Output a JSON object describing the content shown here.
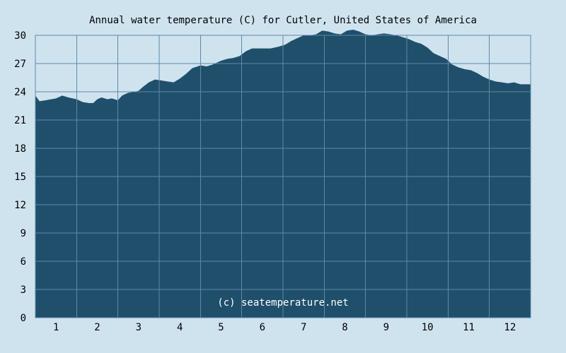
{
  "chart_data": {
    "type": "area",
    "title": "Annual water temperature (C) for Cutler, United States of America",
    "xlabel": "",
    "ylabel": "",
    "x_ticks": [
      "1",
      "2",
      "3",
      "4",
      "5",
      "6",
      "7",
      "8",
      "9",
      "10",
      "11",
      "12"
    ],
    "y_ticks": [
      "0",
      "3",
      "6",
      "9",
      "12",
      "15",
      "18",
      "21",
      "24",
      "27",
      "30"
    ],
    "ylim": [
      0,
      30
    ],
    "xlim": [
      0.5,
      12.5
    ],
    "grid": true,
    "legend": "none",
    "watermark": "(c) seatemperature.net",
    "colors": {
      "background": "#cfe3ef",
      "fill": "#1f4f6b",
      "grid": "#5e89a8",
      "watermark": "#ffffff"
    },
    "series": [
      {
        "x": [
          0.5,
          0.6,
          0.75,
          1.0,
          1.15,
          1.3,
          1.5,
          1.65,
          1.8,
          1.9,
          2.0,
          2.1,
          2.25,
          2.35,
          2.5,
          2.6,
          2.75,
          2.9,
          3.0,
          3.1,
          3.25,
          3.4,
          3.55,
          3.7,
          3.85,
          4.0,
          4.15,
          4.3,
          4.5,
          4.65,
          4.8,
          5.0,
          5.15,
          5.3,
          5.45,
          5.6,
          5.75,
          5.9,
          6.05,
          6.2,
          6.4,
          6.55,
          6.7,
          6.85,
          7.0,
          7.15,
          7.3,
          7.45,
          7.6,
          7.75,
          7.9,
          8.05,
          8.2,
          8.35,
          8.5,
          8.65,
          8.8,
          8.95,
          9.1,
          9.25,
          9.4,
          9.55,
          9.7,
          9.85,
          10.0,
          10.15,
          10.3,
          10.45,
          10.6,
          10.75,
          10.9,
          11.05,
          11.2,
          11.35,
          11.5,
          11.65,
          11.8,
          11.95,
          12.1,
          12.25,
          12.4,
          12.5
        ],
        "values": [
          23.6,
          23.0,
          23.1,
          23.3,
          23.6,
          23.4,
          23.2,
          22.9,
          22.8,
          22.8,
          23.2,
          23.4,
          23.2,
          23.3,
          23.1,
          23.6,
          23.9,
          24.0,
          24.1,
          24.5,
          25.0,
          25.3,
          25.2,
          25.1,
          25.0,
          25.4,
          25.9,
          26.5,
          26.8,
          26.7,
          26.9,
          27.3,
          27.5,
          27.6,
          27.8,
          28.3,
          28.6,
          28.6,
          28.6,
          28.6,
          28.8,
          29.0,
          29.4,
          29.7,
          30.0,
          30.0,
          30.1,
          30.5,
          30.4,
          30.2,
          30.1,
          30.5,
          30.6,
          30.4,
          30.1,
          30.0,
          30.1,
          30.2,
          30.1,
          30.0,
          29.8,
          29.6,
          29.3,
          29.1,
          28.7,
          28.1,
          27.8,
          27.5,
          26.9,
          26.6,
          26.4,
          26.3,
          26.0,
          25.6,
          25.3,
          25.1,
          25.0,
          24.9,
          25.0,
          24.8,
          24.8,
          24.8
        ]
      }
    ]
  }
}
